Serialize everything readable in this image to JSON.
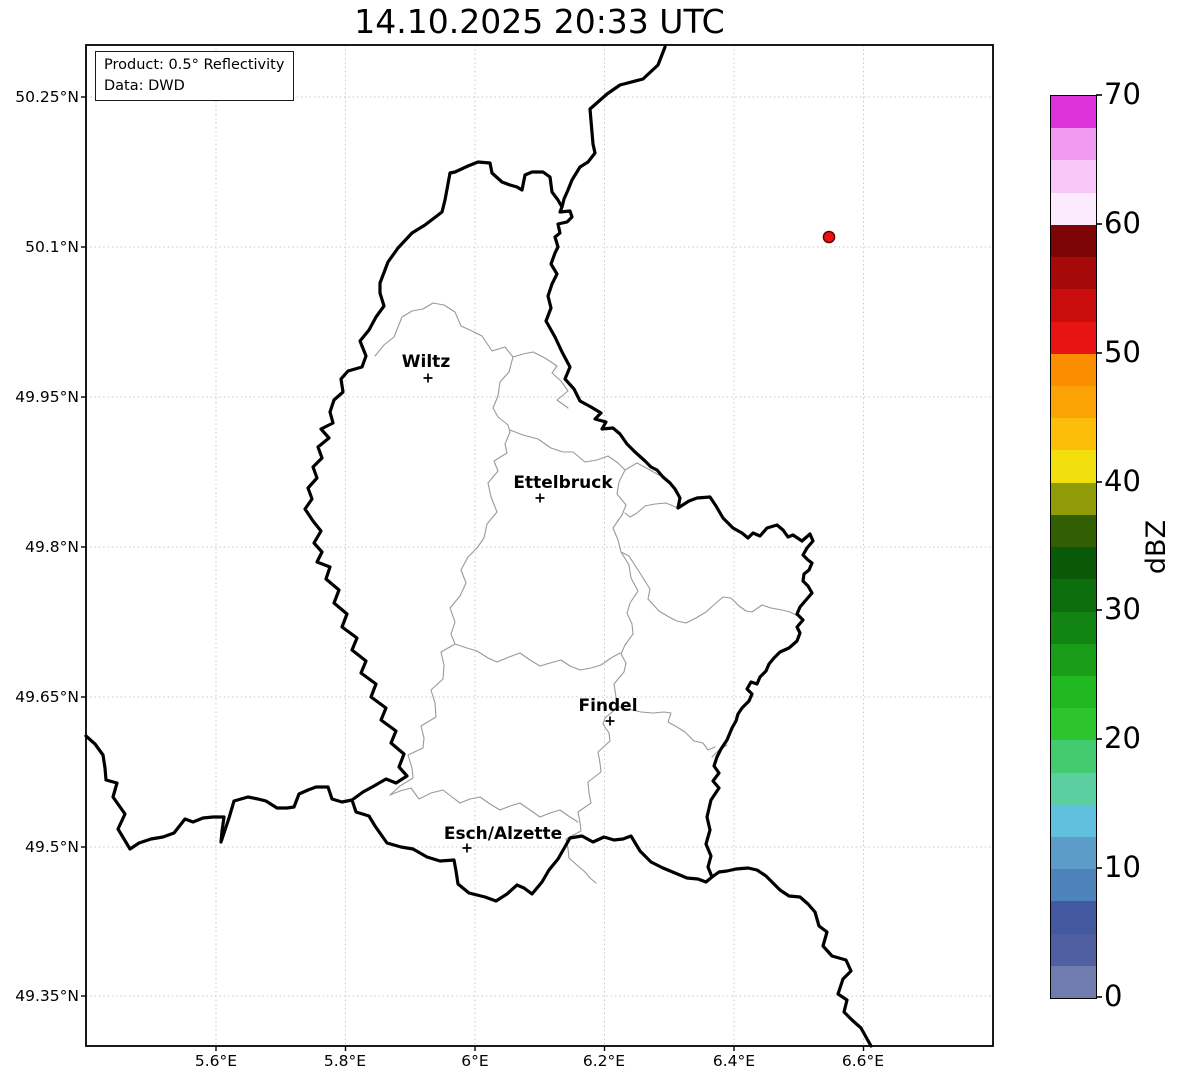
{
  "title": "14.10.2025 20:33 UTC",
  "info_box": {
    "product": "Product: 0.5° Reflectivity",
    "data_source": "Data: DWD"
  },
  "map": {
    "cities": [
      {
        "name": "Wiltz"
      },
      {
        "name": "Ettelbruck"
      },
      {
        "name": "Findel"
      },
      {
        "name": "Esch/Alzette"
      }
    ],
    "radar_site": {
      "color": "#ee0f0f",
      "edge_color": "#550000"
    },
    "country_border_color": "#000000",
    "district_border_color": "#999999",
    "gridline_color": "#c9c9c9"
  },
  "axes": {
    "lon_ticks": [
      "5.6°E",
      "5.8°E",
      "6°E",
      "6.2°E",
      "6.4°E",
      "6.6°E"
    ],
    "lat_ticks": [
      "50.25°N",
      "50.1°N",
      "49.95°N",
      "49.8°N",
      "49.65°N",
      "49.5°N",
      "49.35°N"
    ]
  },
  "colorbar": {
    "label": "dBZ",
    "min": 0,
    "max": 70,
    "segment_step_dbz": 2.5,
    "ticks": [
      "0",
      "10",
      "20",
      "30",
      "40",
      "50",
      "60",
      "70"
    ],
    "segments": [
      "#6f7cad",
      "#4f5fa2",
      "#42589f",
      "#4d82ba",
      "#5b9dc8",
      "#60c0dd",
      "#5bcfa0",
      "#44cb70",
      "#2cc52e",
      "#22b822",
      "#1a9e1a",
      "#128412",
      "#0d6e0d",
      "#095909",
      "#335f04",
      "#8f9c07",
      "#f2df0e",
      "#fcbe0a",
      "#fba305",
      "#fa8d00",
      "#e81414",
      "#c90d0d",
      "#a60909",
      "#7d0505",
      "#fcebfc",
      "#f8c6f8",
      "#f29af2",
      "#dc32dc"
    ]
  }
}
